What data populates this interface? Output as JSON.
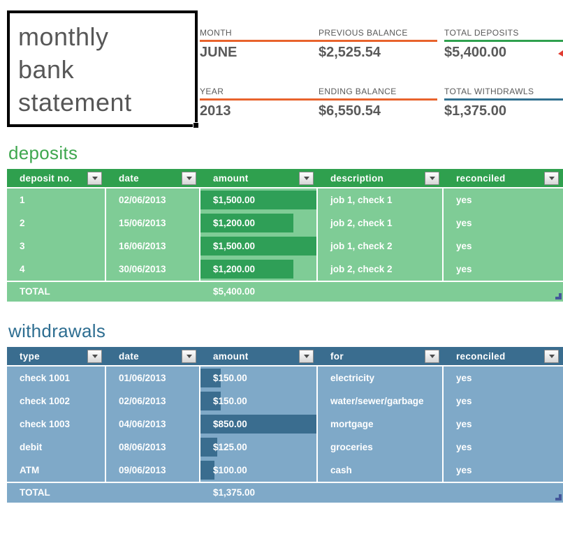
{
  "title_box": {
    "text": "monthly\nbank\nstatement"
  },
  "summary": {
    "row1": [
      {
        "label": "MONTH",
        "value": "JUNE",
        "accent": "#e8632c"
      },
      {
        "label": "PREVIOUS BALANCE",
        "value": "$2,525.54",
        "accent": "#e8632c"
      },
      {
        "label": "TOTAL DEPOSITS",
        "value": "$5,400.00",
        "accent": "#2fa04e"
      }
    ],
    "row2": [
      {
        "label": "YEAR",
        "value": "2013",
        "accent": "#e8632c"
      },
      {
        "label": "ENDING BALANCE",
        "value": "$6,550.54",
        "accent": "#e8632c"
      },
      {
        "label": "TOTAL WITHDRAWLS",
        "value": "$1,375.00",
        "accent": "#31708f"
      }
    ]
  },
  "deposits_table": {
    "section_title": "deposits",
    "title_color": "#3fa74f",
    "header_bg": "#2fa04e",
    "row_bg": "#7fcc96",
    "bar_color": "#2f9f57",
    "columns": [
      "deposit no.",
      "date",
      "amount",
      "description",
      "reconciled"
    ],
    "rows": [
      {
        "cells": [
          "1",
          "02/06/2013",
          "$1,500.00",
          "job 1, check 1",
          "yes"
        ],
        "bar": 1.0
      },
      {
        "cells": [
          "2",
          "15/06/2013",
          "$1,200.00",
          "job 2, check 1",
          "yes"
        ],
        "bar": 0.8
      },
      {
        "cells": [
          "3",
          "16/06/2013",
          "$1,500.00",
          "job 1, check 2",
          "yes"
        ],
        "bar": 1.0
      },
      {
        "cells": [
          "4",
          "30/06/2013",
          "$1,200.00",
          "job 2, check 2",
          "yes"
        ],
        "bar": 0.8
      }
    ],
    "total_label": "TOTAL",
    "total_value": "$5,400.00"
  },
  "withdrawals_table": {
    "section_title": "withdrawals",
    "title_color": "#2e6e91",
    "header_bg": "#3a6d8f",
    "row_bg": "#7fa9c8",
    "bar_color": "#3a6d8f",
    "columns": [
      "type",
      "date",
      "amount",
      "for",
      "reconciled"
    ],
    "rows": [
      {
        "cells": [
          "check 1001",
          "01/06/2013",
          "$150.00",
          "electricity",
          "yes"
        ],
        "bar": 0.176
      },
      {
        "cells": [
          "check 1002",
          "02/06/2013",
          "$150.00",
          "water/sewer/garbage",
          "yes"
        ],
        "bar": 0.176
      },
      {
        "cells": [
          "check 1003",
          "04/06/2013",
          "$850.00",
          "mortgage",
          "yes"
        ],
        "bar": 1.0
      },
      {
        "cells": [
          "debit",
          "08/06/2013",
          "$125.00",
          "groceries",
          "yes"
        ],
        "bar": 0.147
      },
      {
        "cells": [
          "ATM",
          "09/06/2013",
          "$100.00",
          "cash",
          "yes"
        ],
        "bar": 0.118
      }
    ],
    "total_label": "TOTAL",
    "total_value": "$1,375.00"
  }
}
